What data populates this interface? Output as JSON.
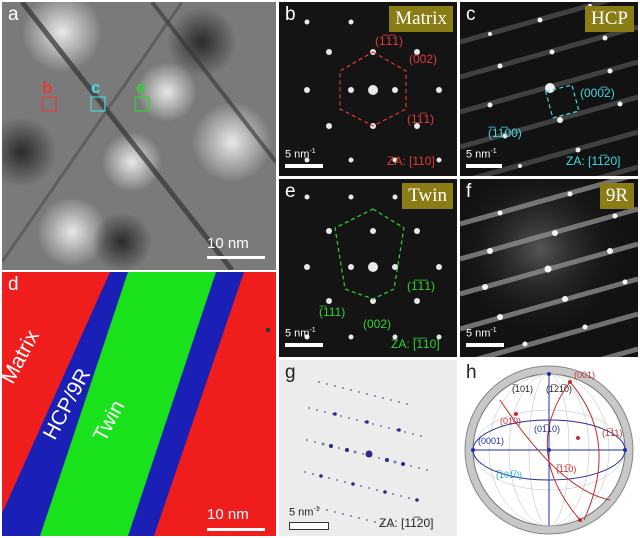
{
  "panels": {
    "a": {
      "letter": "a",
      "box_labels": {
        "b": "b",
        "c": "c",
        "e": "e"
      },
      "scalebar": "10 nm"
    },
    "b": {
      "letter": "b",
      "tag": "Matrix",
      "spots": [
        "(̅1̅1)",
        "(002)",
        "(1̅1̅1)"
      ],
      "spot_b1": "(1̅1̅1)",
      "spot_b2": "(002)",
      "spot_b3": "(11̅1)",
      "scale": "5 nm",
      "scale_unit": "-1",
      "za": "ZA: [110]"
    },
    "c": {
      "letter": "c",
      "tag": "HCP",
      "spot1": "(000̅2)",
      "spot2": "(̅11̅00)",
      "scale": "5 nm",
      "scale_unit": "-1",
      "za": "ZA: [11̅20]"
    },
    "d": {
      "letter": "d",
      "regions": [
        "Matrix",
        "HCP/9R",
        "Twin"
      ],
      "scalebar": "10 nm"
    },
    "e": {
      "letter": "e",
      "tag": "Twin",
      "spot1": "(1̅1̅1)",
      "spot2": "(̅111)",
      "spot3": "(002)",
      "scale": "5 nm",
      "scale_unit": "-1",
      "za": "ZA: [̅1̅10]"
    },
    "f": {
      "letter": "f",
      "tag": "9R",
      "scale": "5 nm",
      "scale_unit": "-1"
    },
    "g": {
      "letter": "g",
      "scale": "5 nm",
      "scale_unit": "-1",
      "za": "ZA: [11̅20]"
    },
    "h": {
      "letter": "h",
      "poles": {
        "p001": "(001)",
        "p101": "(̅101)",
        "p1210": "(1̅21̅0)",
        "p0001": "(0001)",
        "p01bar10": "(01̅10)",
        "p010": "(010)",
        "p111": "(1̅11)",
        "p1010": "(̅101̅0)",
        "p110": "(̅11̅0)"
      }
    }
  },
  "colors": {
    "matrix": "#e8201e",
    "hcp": "#1622c4",
    "twin": "#20e620",
    "tag": "#8a7d16"
  }
}
